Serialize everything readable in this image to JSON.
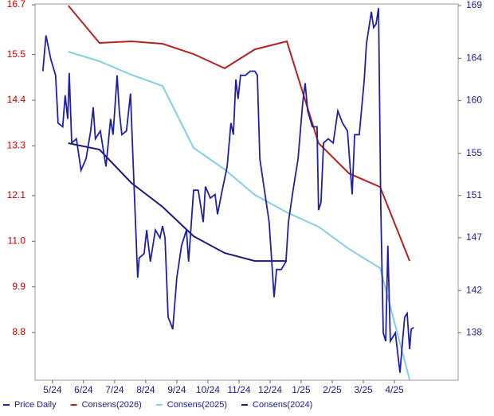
{
  "chart_data": {
    "type": "line",
    "xlim": [
      -0.56,
      13.05
    ],
    "xticks": [
      {
        "value": 0,
        "label": "5/24"
      },
      {
        "value": 1,
        "label": "6/24"
      },
      {
        "value": 2,
        "label": "7/24"
      },
      {
        "value": 3,
        "label": "8/24"
      },
      {
        "value": 4,
        "label": "9/24"
      },
      {
        "value": 5,
        "label": "10/24"
      },
      {
        "value": 6,
        "label": "11/24"
      },
      {
        "value": 7,
        "label": "12/24"
      },
      {
        "value": 8,
        "label": "1/25"
      },
      {
        "value": 9,
        "label": "2/25"
      },
      {
        "value": 10,
        "label": "3/25"
      },
      {
        "value": 11,
        "label": "4/25"
      }
    ],
    "ylim": [
      7.65,
      16.72
    ],
    "yticks": [
      16.7,
      15.5,
      14.4,
      13.3,
      12.1,
      {
        "value": 11,
        "label": "11.0"
      },
      9.9,
      8.8
    ],
    "y2lim": [
      133.5,
      169.15
    ],
    "y2ticks": [
      169,
      164,
      160,
      155,
      151,
      147,
      142,
      138
    ],
    "ytick_color": "#c00000",
    "y2tick_color": "#1c1c8c",
    "legend": "bottom",
    "series": [
      {
        "name": "Price Daily",
        "color": "#1f1fa8",
        "x": [
          -0.31,
          -0.21,
          -0.05,
          0.1,
          0.18,
          0.33,
          0.41,
          0.49,
          0.54,
          0.62,
          0.77,
          0.92,
          1.08,
          1.23,
          1.31,
          1.38,
          1.54,
          1.72,
          1.87,
          1.95,
          2.08,
          2.15,
          2.23,
          2.38,
          2.51,
          2.59,
          2.74,
          2.79,
          2.95,
          3.03,
          3.15,
          3.31,
          3.46,
          3.54,
          3.62,
          3.72,
          3.82,
          3.87,
          4.0,
          4.15,
          4.31,
          4.38,
          4.54,
          4.69,
          4.85,
          4.92,
          5.08,
          5.23,
          5.31,
          5.46,
          5.62,
          5.74,
          5.82,
          5.9,
          5.97,
          6.05,
          6.21,
          6.36,
          6.51,
          6.59,
          6.67,
          6.82,
          6.97,
          7.13,
          7.21,
          7.36,
          7.51,
          7.59,
          7.74,
          7.9,
          8.05,
          8.13,
          8.21,
          8.36,
          8.51,
          8.56,
          8.64,
          8.72,
          8.87,
          9.03,
          9.18,
          9.33,
          9.49,
          9.64,
          9.72,
          9.87,
          10.03,
          10.1,
          10.26,
          10.33,
          10.41,
          10.49,
          10.56,
          10.64,
          10.72,
          10.79,
          10.87,
          11.03,
          11.18,
          11.26,
          11.33,
          11.41,
          11.49,
          11.54,
          11.62
        ],
        "values": [
          15.1,
          15.96,
          15.38,
          15.0,
          13.85,
          13.76,
          14.52,
          13.95,
          15.06,
          13.37,
          13.47,
          12.71,
          12.99,
          13.66,
          14.23,
          13.47,
          13.66,
          12.8,
          13.95,
          13.57,
          15.0,
          14.14,
          13.57,
          13.66,
          14.56,
          12.99,
          10.12,
          10.6,
          10.7,
          11.27,
          10.51,
          11.27,
          11.08,
          11.37,
          11.08,
          9.17,
          8.98,
          8.88,
          10.12,
          10.89,
          11.27,
          10.51,
          12.23,
          12.23,
          11.46,
          12.32,
          12.04,
          12.13,
          11.65,
          12.23,
          12.8,
          13.85,
          13.57,
          14.9,
          14.43,
          15.0,
          15.0,
          15.1,
          15.1,
          15.0,
          12.99,
          12.23,
          11.46,
          9.65,
          10.32,
          10.32,
          10.51,
          11.46,
          12.23,
          12.99,
          14.33,
          14.81,
          14.14,
          13.76,
          13.76,
          11.75,
          11.94,
          13.37,
          13.47,
          13.37,
          14.14,
          13.85,
          13.66,
          12.13,
          13.57,
          13.57,
          14.9,
          15.76,
          16.53,
          16.15,
          16.24,
          16.62,
          11.85,
          8.79,
          8.59,
          10.89,
          8.59,
          8.79,
          7.83,
          8.59,
          9.17,
          9.26,
          8.4,
          8.88,
          8.92
        ]
      },
      {
        "name": "Consens(2026)",
        "color": "#b22222",
        "axis": "y2",
        "x": [
          0.51,
          1.51,
          2.54,
          3.54,
          4.54,
          5.54,
          6.51,
          7.54,
          8.56,
          9.54,
          10.54,
          11.49
        ],
        "values": [
          169.0,
          165.46,
          165.61,
          165.38,
          164.4,
          163.05,
          164.85,
          165.61,
          155.96,
          153.09,
          151.81,
          144.8
        ]
      },
      {
        "name": "Consens(2025)",
        "color": "#86cde3",
        "axis": "y2",
        "x": [
          0.51,
          1.51,
          2.54,
          3.54,
          4.54,
          5.54,
          6.51,
          7.54,
          8.56,
          9.54,
          10.54,
          11.49
        ],
        "values": [
          164.63,
          163.72,
          162.44,
          161.39,
          155.51,
          153.47,
          151.06,
          149.4,
          148.04,
          145.93,
          144.12,
          133.56
        ]
      },
      {
        "name": "Consens(2024)",
        "color": "#1a1a7a",
        "axis": "y2",
        "x": [
          0.51,
          1.51,
          2.54,
          3.54,
          4.54,
          5.54,
          6.51,
          7.54
        ],
        "values": [
          155.96,
          155.36,
          152.19,
          149.93,
          147.14,
          145.55,
          144.8,
          144.8
        ]
      }
    ]
  }
}
